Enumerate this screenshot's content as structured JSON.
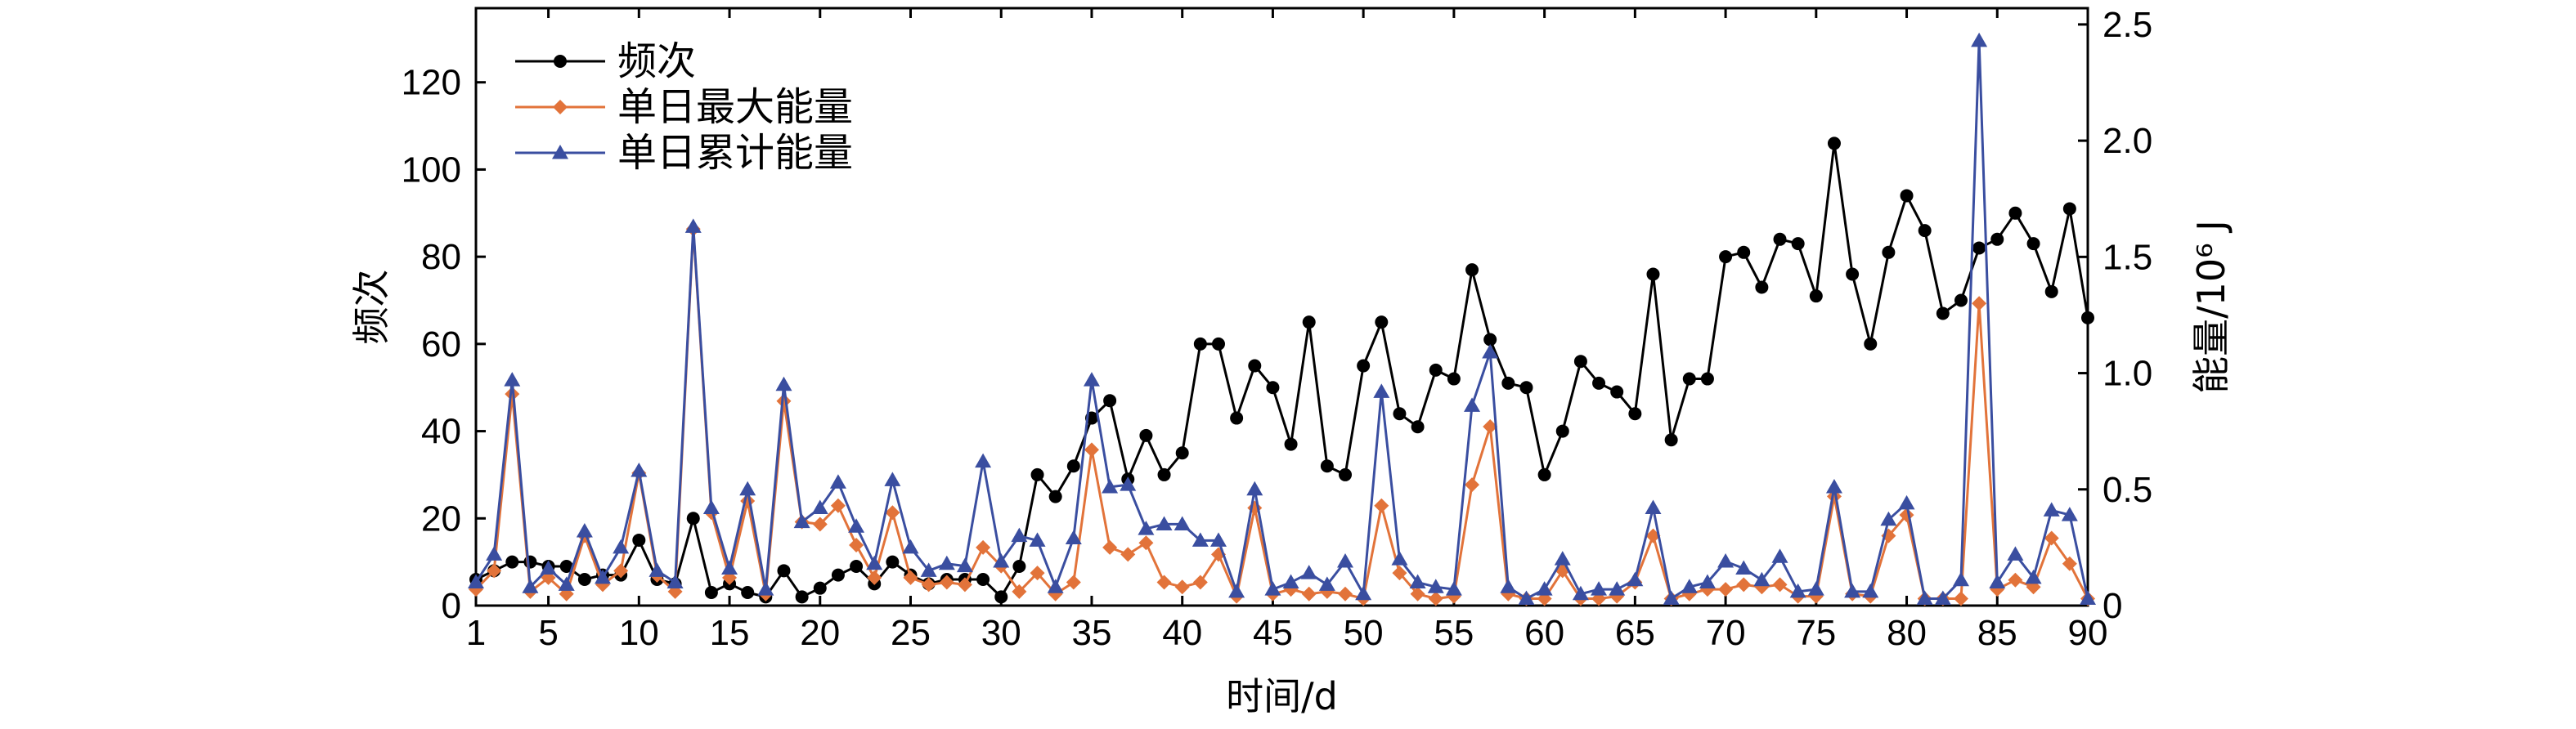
{
  "chart_data": {
    "type": "line",
    "xlabel": "时间/d",
    "ylabel_left": "频次",
    "ylabel_right": "能量/10⁶ J",
    "xlim": [
      1,
      90
    ],
    "ylim_left": [
      0,
      137
    ],
    "ylim_right": [
      0,
      2.57
    ],
    "xticks": [
      1,
      5,
      10,
      15,
      20,
      25,
      30,
      35,
      40,
      45,
      50,
      55,
      60,
      65,
      70,
      75,
      80,
      85,
      90
    ],
    "yticks_left": [
      0,
      20,
      40,
      60,
      80,
      100,
      120
    ],
    "yticks_right": [
      0,
      0.5,
      1.0,
      1.5,
      2.0,
      2.5
    ],
    "yticks_right_labels": [
      "0",
      "0.5",
      "1.0",
      "1.5",
      "2.0",
      "2.5"
    ],
    "grid": false,
    "legend_position": "top-left",
    "x": [
      1,
      2,
      3,
      4,
      5,
      6,
      7,
      8,
      9,
      10,
      11,
      12,
      13,
      14,
      15,
      16,
      17,
      18,
      19,
      20,
      21,
      22,
      23,
      24,
      25,
      26,
      27,
      28,
      29,
      30,
      31,
      32,
      33,
      34,
      35,
      36,
      37,
      38,
      39,
      40,
      41,
      42,
      43,
      44,
      45,
      46,
      47,
      48,
      49,
      50,
      51,
      52,
      53,
      54,
      55,
      56,
      57,
      58,
      59,
      60,
      61,
      62,
      63,
      64,
      65,
      66,
      67,
      68,
      69,
      70,
      71,
      72,
      73,
      74,
      75,
      76,
      77,
      78,
      79,
      80,
      81,
      82,
      83,
      84,
      85,
      86,
      87,
      88,
      89,
      90
    ],
    "series": [
      {
        "name": "频次",
        "axis": "left",
        "color": "#000000",
        "marker": "circle",
        "values": [
          6,
          8,
          10,
          10,
          9,
          9,
          6,
          7,
          7,
          15,
          6,
          5,
          20,
          3,
          5,
          3,
          2,
          8,
          2,
          4,
          7,
          9,
          5,
          10,
          7,
          5,
          6,
          6,
          6,
          2,
          9,
          30,
          25,
          32,
          43,
          47,
          29,
          39,
          30,
          35,
          60,
          60,
          43,
          55,
          50,
          37,
          65,
          32,
          30,
          55,
          65,
          44,
          41,
          54,
          52,
          77,
          61,
          51,
          50,
          30,
          40,
          56,
          51,
          49,
          44,
          76,
          38,
          52,
          52,
          80,
          81,
          73,
          84,
          83,
          71,
          106,
          76,
          60,
          81,
          94,
          86,
          67,
          70,
          82,
          84,
          90,
          83,
          72,
          91,
          66
        ]
      },
      {
        "name": "单日最大能量",
        "axis": "right",
        "color": "#e2733a",
        "marker": "diamond",
        "values": [
          0.07,
          0.15,
          0.91,
          0.06,
          0.12,
          0.05,
          0.3,
          0.09,
          0.15,
          0.57,
          0.13,
          0.06,
          1.62,
          0.4,
          0.12,
          0.45,
          0.05,
          0.88,
          0.36,
          0.35,
          0.43,
          0.26,
          0.12,
          0.4,
          0.12,
          0.09,
          0.1,
          0.09,
          0.25,
          0.17,
          0.06,
          0.14,
          0.05,
          0.1,
          0.67,
          0.25,
          0.22,
          0.27,
          0.1,
          0.08,
          0.1,
          0.22,
          0.04,
          0.42,
          0.05,
          0.07,
          0.05,
          0.06,
          0.05,
          0.03,
          0.43,
          0.14,
          0.05,
          0.03,
          0.04,
          0.52,
          0.77,
          0.05,
          0.03,
          0.03,
          0.15,
          0.03,
          0.03,
          0.04,
          0.1,
          0.3,
          0.03,
          0.05,
          0.07,
          0.07,
          0.09,
          0.08,
          0.09,
          0.04,
          0.04,
          0.47,
          0.05,
          0.04,
          0.3,
          0.39,
          0.03,
          0.03,
          0.03,
          1.3,
          0.07,
          0.11,
          0.08,
          0.29,
          0.18,
          0.03
        ]
      },
      {
        "name": "单日累计能量",
        "axis": "right",
        "color": "#3a4ea0",
        "marker": "triangle",
        "values": [
          0.1,
          0.22,
          0.97,
          0.08,
          0.16,
          0.09,
          0.32,
          0.12,
          0.25,
          0.58,
          0.15,
          0.1,
          1.63,
          0.42,
          0.16,
          0.5,
          0.07,
          0.95,
          0.36,
          0.42,
          0.53,
          0.34,
          0.18,
          0.54,
          0.25,
          0.15,
          0.18,
          0.17,
          0.62,
          0.19,
          0.3,
          0.28,
          0.08,
          0.29,
          0.97,
          0.51,
          0.52,
          0.33,
          0.35,
          0.35,
          0.28,
          0.28,
          0.06,
          0.5,
          0.07,
          0.1,
          0.14,
          0.09,
          0.19,
          0.05,
          0.92,
          0.2,
          0.1,
          0.08,
          0.07,
          0.86,
          1.09,
          0.08,
          0.03,
          0.07,
          0.2,
          0.05,
          0.07,
          0.07,
          0.11,
          0.42,
          0.03,
          0.08,
          0.1,
          0.19,
          0.16,
          0.11,
          0.21,
          0.06,
          0.07,
          0.51,
          0.06,
          0.06,
          0.37,
          0.44,
          0.03,
          0.03,
          0.11,
          2.43,
          0.1,
          0.22,
          0.12,
          0.41,
          0.39,
          0.03
        ]
      }
    ]
  }
}
